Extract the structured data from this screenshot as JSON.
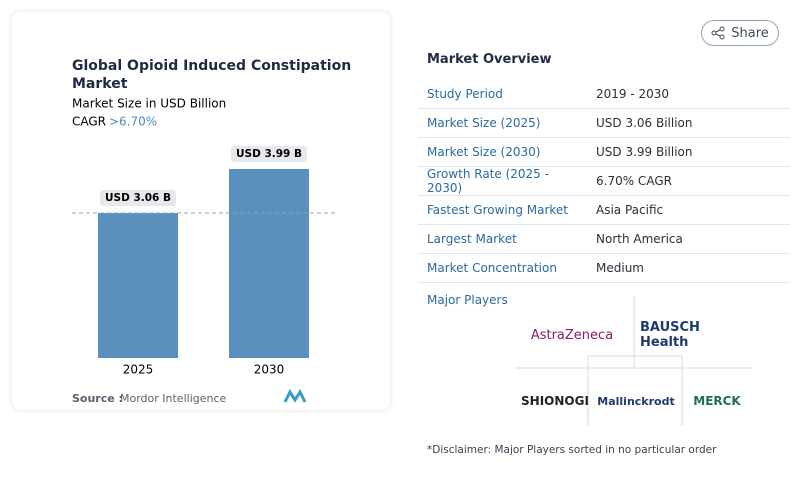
{
  "share": "Share",
  "chart_data": {
    "type": "bar",
    "title": "Global Opioid Induced Constipation Market",
    "subtitle": "Market Size in USD Billion",
    "cagr_label": "CAGR",
    "cagr_value": ">6.70%",
    "categories": [
      "2025",
      "2030"
    ],
    "values": [
      3.06,
      3.99
    ],
    "value_labels": [
      "USD 3.06 B",
      "USD 3.99 B"
    ],
    "color": "#5b8fbc",
    "source_label": "Source :",
    "source": "Mordor Intelligence"
  },
  "overview": {
    "title": "Market Overview",
    "rows": [
      [
        "Study Period",
        "2019 - 2030"
      ],
      [
        "Market Size (2025)",
        "USD 3.06 Billion"
      ],
      [
        "Market Size (2030)",
        "USD 3.99 Billion"
      ],
      [
        "Growth Rate (2025 - 2030)",
        "6.70% CAGR"
      ],
      [
        "Fastest Growing Market",
        "Asia Pacific"
      ],
      [
        "Largest Market",
        "North America"
      ],
      [
        "Market Concentration",
        "Medium"
      ]
    ]
  },
  "players": {
    "title": "Major Players",
    "names": [
      "AstraZeneca",
      "BAUSCH Health",
      "SHIONOGI",
      "Mallinckrodt",
      "MERCK"
    ],
    "disclaimer": "*Disclaimer: Major Players sorted in no particular order"
  }
}
